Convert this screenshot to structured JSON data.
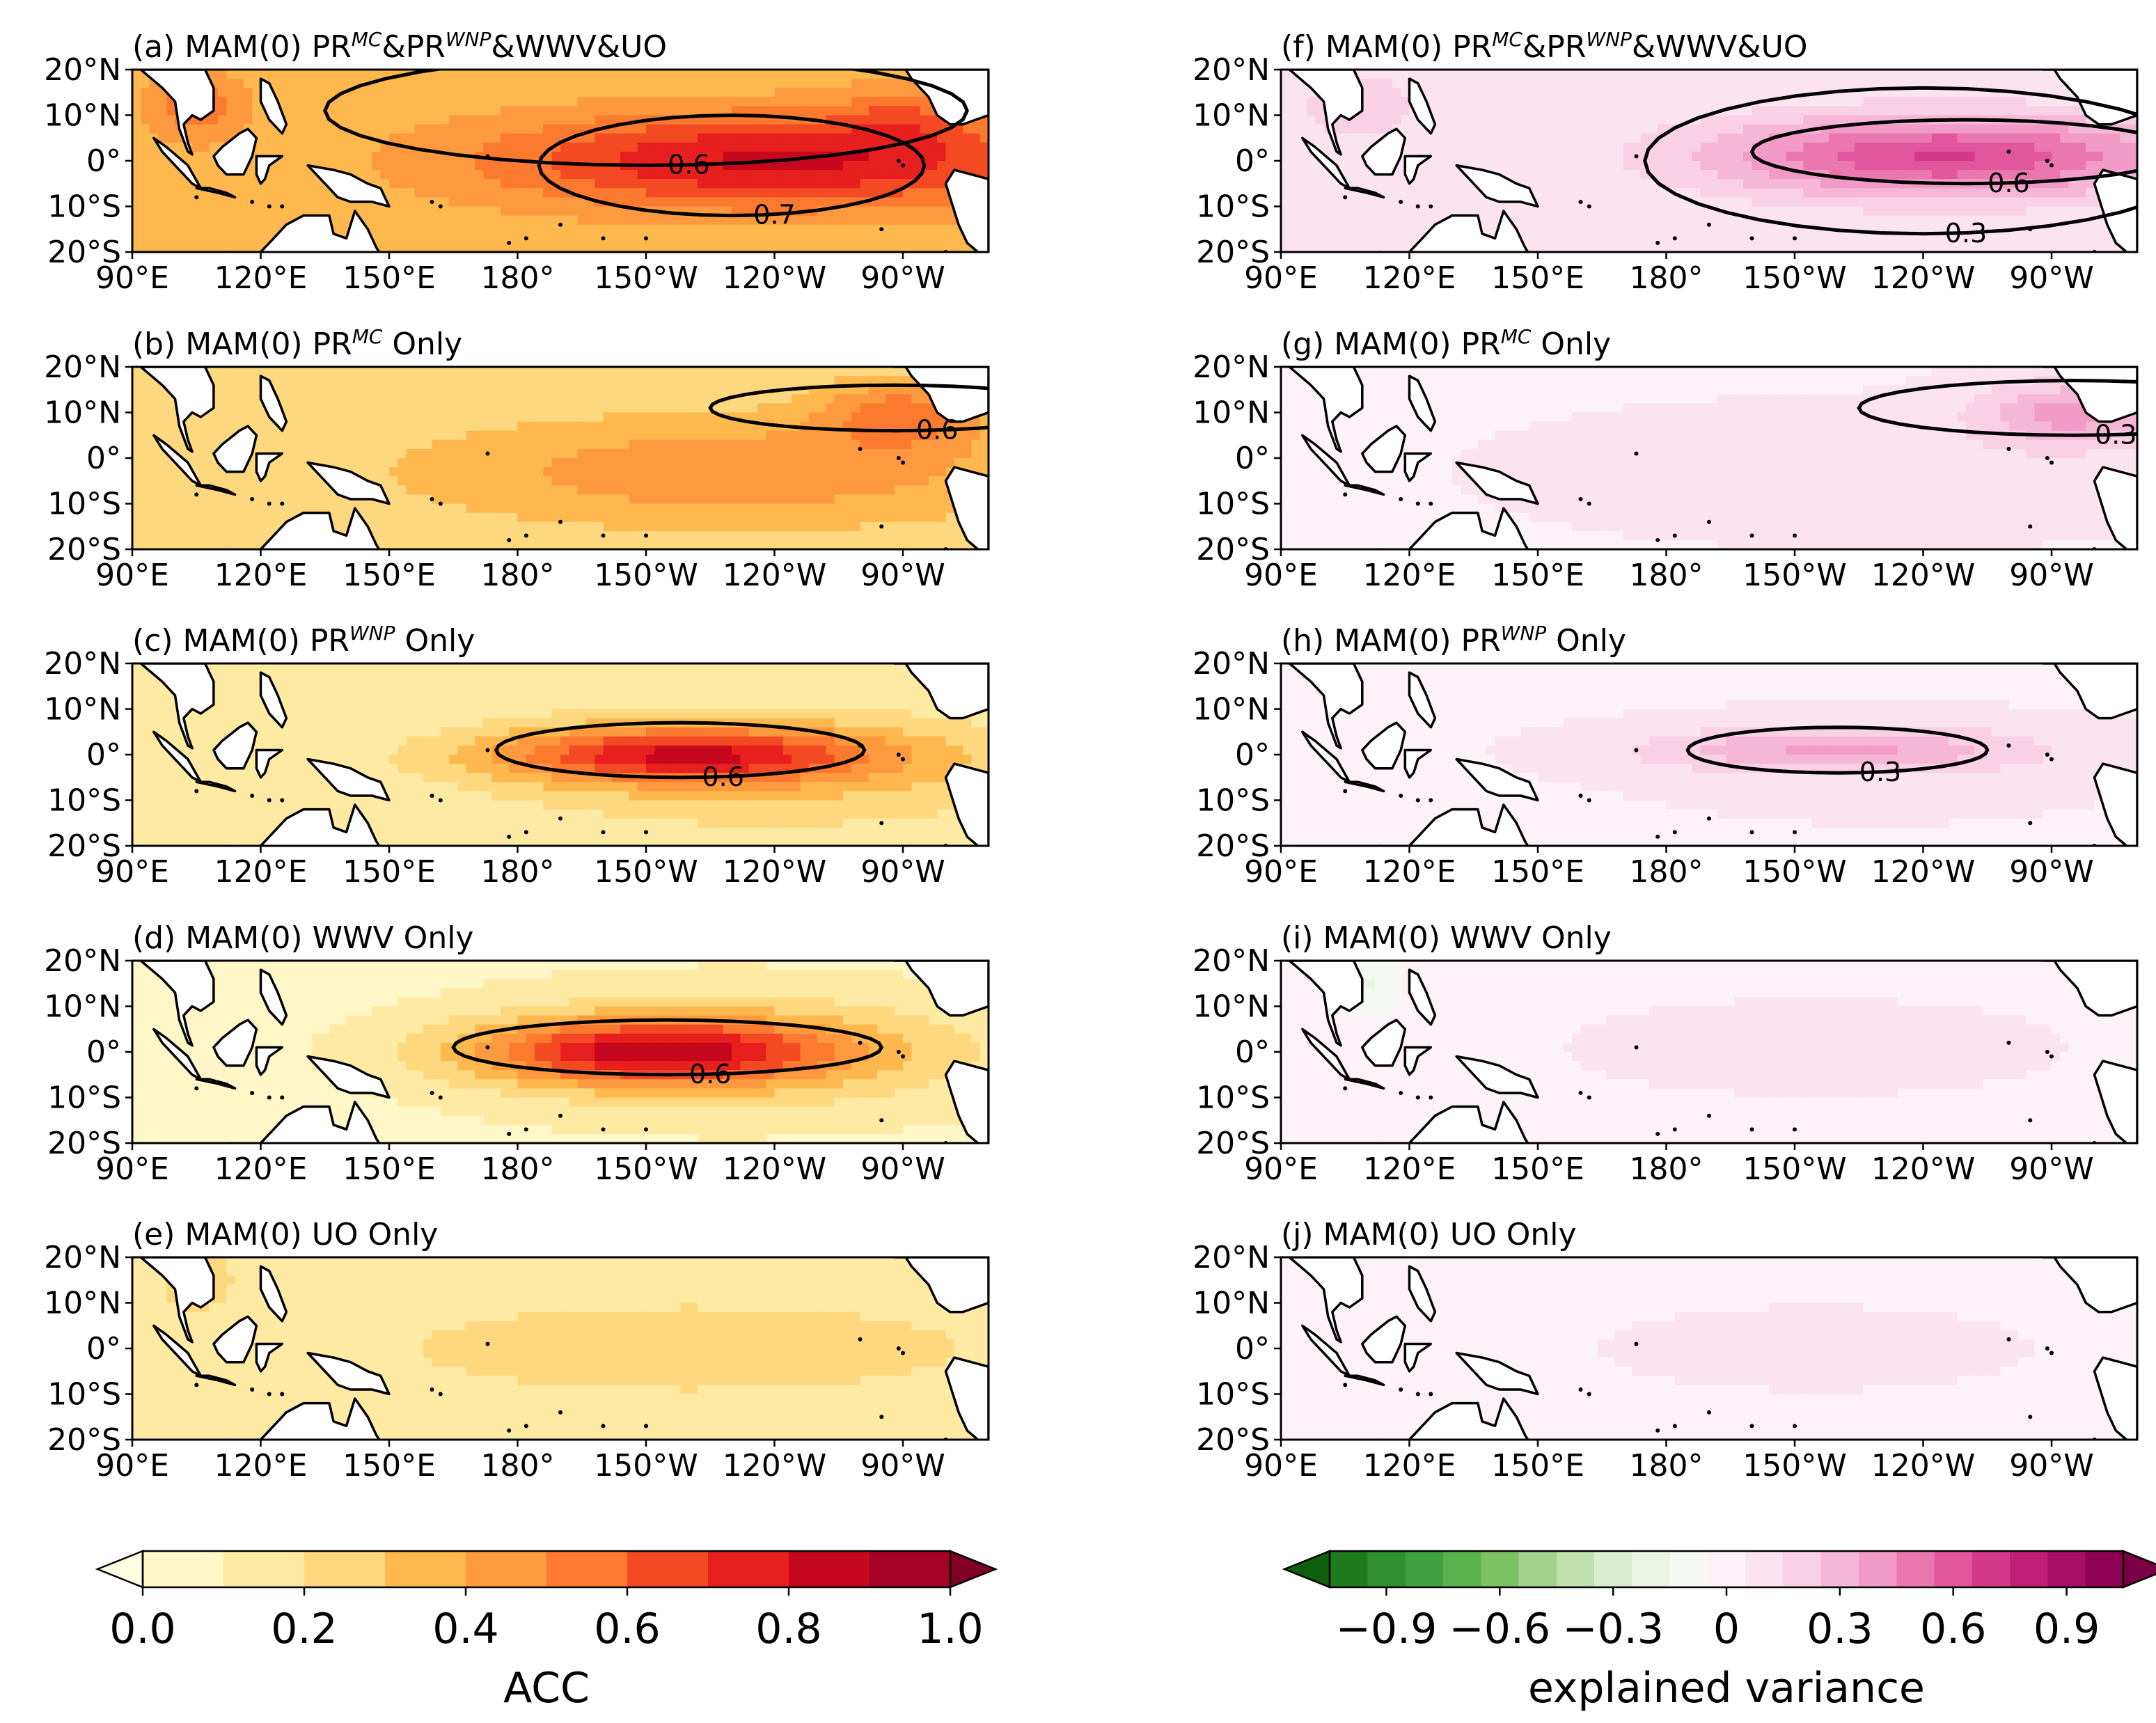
{
  "chart_data": {
    "type": "map",
    "axes": {
      "x_ticks": [
        "90°E",
        "120°E",
        "150°E",
        "180°",
        "150°W",
        "120°W",
        "90°W"
      ],
      "y_ticks": [
        "20°N",
        "10°N",
        "0°",
        "10°S",
        "20°S"
      ]
    },
    "panels": [
      {
        "id": "a",
        "prefix": "(a) MAM(0) PR",
        "sup1": "MC",
        "mid": "&PR",
        "sup2": "WNP",
        "suffix": "&WWV&UO",
        "field": "acc",
        "contours": [
          {
            "value": 0.6,
            "label": "0.6"
          },
          {
            "value": 0.7,
            "label": "0.7"
          }
        ]
      },
      {
        "id": "b",
        "prefix": "(b) MAM(0) PR",
        "sup1": "MC",
        "mid": " Only",
        "sup2": "",
        "suffix": "",
        "field": "acc",
        "contours": [
          {
            "value": 0.6,
            "label": "0.6"
          }
        ]
      },
      {
        "id": "c",
        "prefix": "(c) MAM(0) PR",
        "sup1": "WNP",
        "mid": " Only",
        "sup2": "",
        "suffix": "",
        "field": "acc",
        "contours": [
          {
            "value": 0.6,
            "label": "0.6"
          }
        ]
      },
      {
        "id": "d",
        "prefix": "(d) MAM(0) WWV Only",
        "sup1": "",
        "mid": "",
        "sup2": "",
        "suffix": "",
        "field": "acc",
        "contours": [
          {
            "value": 0.6,
            "label": "0.6"
          }
        ]
      },
      {
        "id": "e",
        "prefix": "(e) MAM(0) UO Only",
        "sup1": "",
        "mid": "",
        "sup2": "",
        "suffix": "",
        "field": "acc",
        "contours": []
      },
      {
        "id": "f",
        "prefix": "(f) MAM(0) PR",
        "sup1": "MC",
        "mid": "&PR",
        "sup2": "WNP",
        "suffix": "&WWV&UO",
        "field": "ev",
        "contours": [
          {
            "value": 0.3,
            "label": "0.3"
          },
          {
            "value": 0.6,
            "label": "0.6"
          }
        ]
      },
      {
        "id": "g",
        "prefix": "(g) MAM(0) PR",
        "sup1": "MC",
        "mid": " Only",
        "sup2": "",
        "suffix": "",
        "field": "ev",
        "contours": [
          {
            "value": 0.3,
            "label": "0.3"
          }
        ]
      },
      {
        "id": "h",
        "prefix": "(h) MAM(0) PR",
        "sup1": "WNP",
        "mid": " Only",
        "sup2": "",
        "suffix": "",
        "field": "ev",
        "contours": [
          {
            "value": 0.3,
            "label": "0.3"
          }
        ]
      },
      {
        "id": "i",
        "prefix": "(i) MAM(0) WWV Only",
        "sup1": "",
        "mid": "",
        "sup2": "",
        "suffix": "",
        "field": "ev",
        "contours": []
      },
      {
        "id": "j",
        "prefix": "(j) MAM(0) UO Only",
        "sup1": "",
        "mid": "",
        "sup2": "",
        "suffix": "",
        "field": "ev",
        "contours": []
      }
    ],
    "colorbars": [
      {
        "id": "acc",
        "label": "ACC",
        "ticks": [
          "0.0",
          "0.2",
          "0.4",
          "0.6",
          "0.8",
          "1.0"
        ],
        "range": [
          0,
          1
        ],
        "step": 0.1,
        "colors": [
          "#fff7c8",
          "#ffeaa4",
          "#fed87e",
          "#feb84e",
          "#fd9a3f",
          "#fc7a2f",
          "#f44a24",
          "#e71f1f",
          "#c6081f",
          "#a50026"
        ],
        "under": "#ffffe5",
        "over": "#800026"
      },
      {
        "id": "ev",
        "label": "explained variance",
        "ticks": [
          "−0.9",
          "−0.6",
          "−0.3",
          "0",
          "0.3",
          "0.6",
          "0.9"
        ],
        "range": [
          -1.05,
          1.05
        ],
        "step": 0.1,
        "colors": [
          "#1e7b1e",
          "#2e8f2e",
          "#3fa03f",
          "#5ab14e",
          "#7dc165",
          "#a2d28b",
          "#c0e1ad",
          "#d9edcf",
          "#eaf4e4",
          "#f5f8f3",
          "#fdf2f7",
          "#fbe3ef",
          "#f9d0e4",
          "#f6b7d6",
          "#f29bc6",
          "#ea77b0",
          "#e1569c",
          "#d33a89",
          "#c01f76",
          "#a70f66",
          "#8e0152"
        ],
        "under": "#0e5f0e",
        "over": "#7a0145"
      }
    ]
  }
}
